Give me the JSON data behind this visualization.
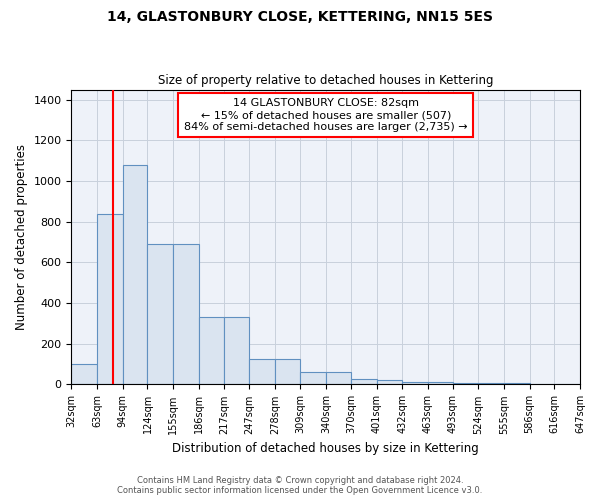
{
  "title": "14, GLASTONBURY CLOSE, KETTERING, NN15 5ES",
  "subtitle": "Size of property relative to detached houses in Kettering",
  "xlabel": "Distribution of detached houses by size in Kettering",
  "ylabel": "Number of detached properties",
  "bin_edges": [
    32,
    63,
    94,
    124,
    155,
    186,
    217,
    247,
    278,
    309,
    340,
    370,
    401,
    432,
    463,
    493,
    524,
    555,
    586,
    616,
    647
  ],
  "bar_heights": [
    100,
    840,
    1080,
    690,
    690,
    330,
    330,
    125,
    125,
    60,
    60,
    25,
    20,
    10,
    10,
    8,
    5,
    5,
    3,
    3
  ],
  "bar_color": "#dae4f0",
  "bar_edge_color": "#6090c0",
  "grid_color": "#c8d0dc",
  "background_color": "#eef2f9",
  "red_line_x": 82,
  "annotation_text": "14 GLASTONBURY CLOSE: 82sqm\n← 15% of detached houses are smaller (507)\n84% of semi-detached houses are larger (2,735) →",
  "annotation_box_color": "white",
  "annotation_box_edge_color": "red",
  "ylim": [
    0,
    1450
  ],
  "yticks": [
    0,
    200,
    400,
    600,
    800,
    1000,
    1200,
    1400
  ],
  "footer_line1": "Contains HM Land Registry data © Crown copyright and database right 2024.",
  "footer_line2": "Contains public sector information licensed under the Open Government Licence v3.0."
}
